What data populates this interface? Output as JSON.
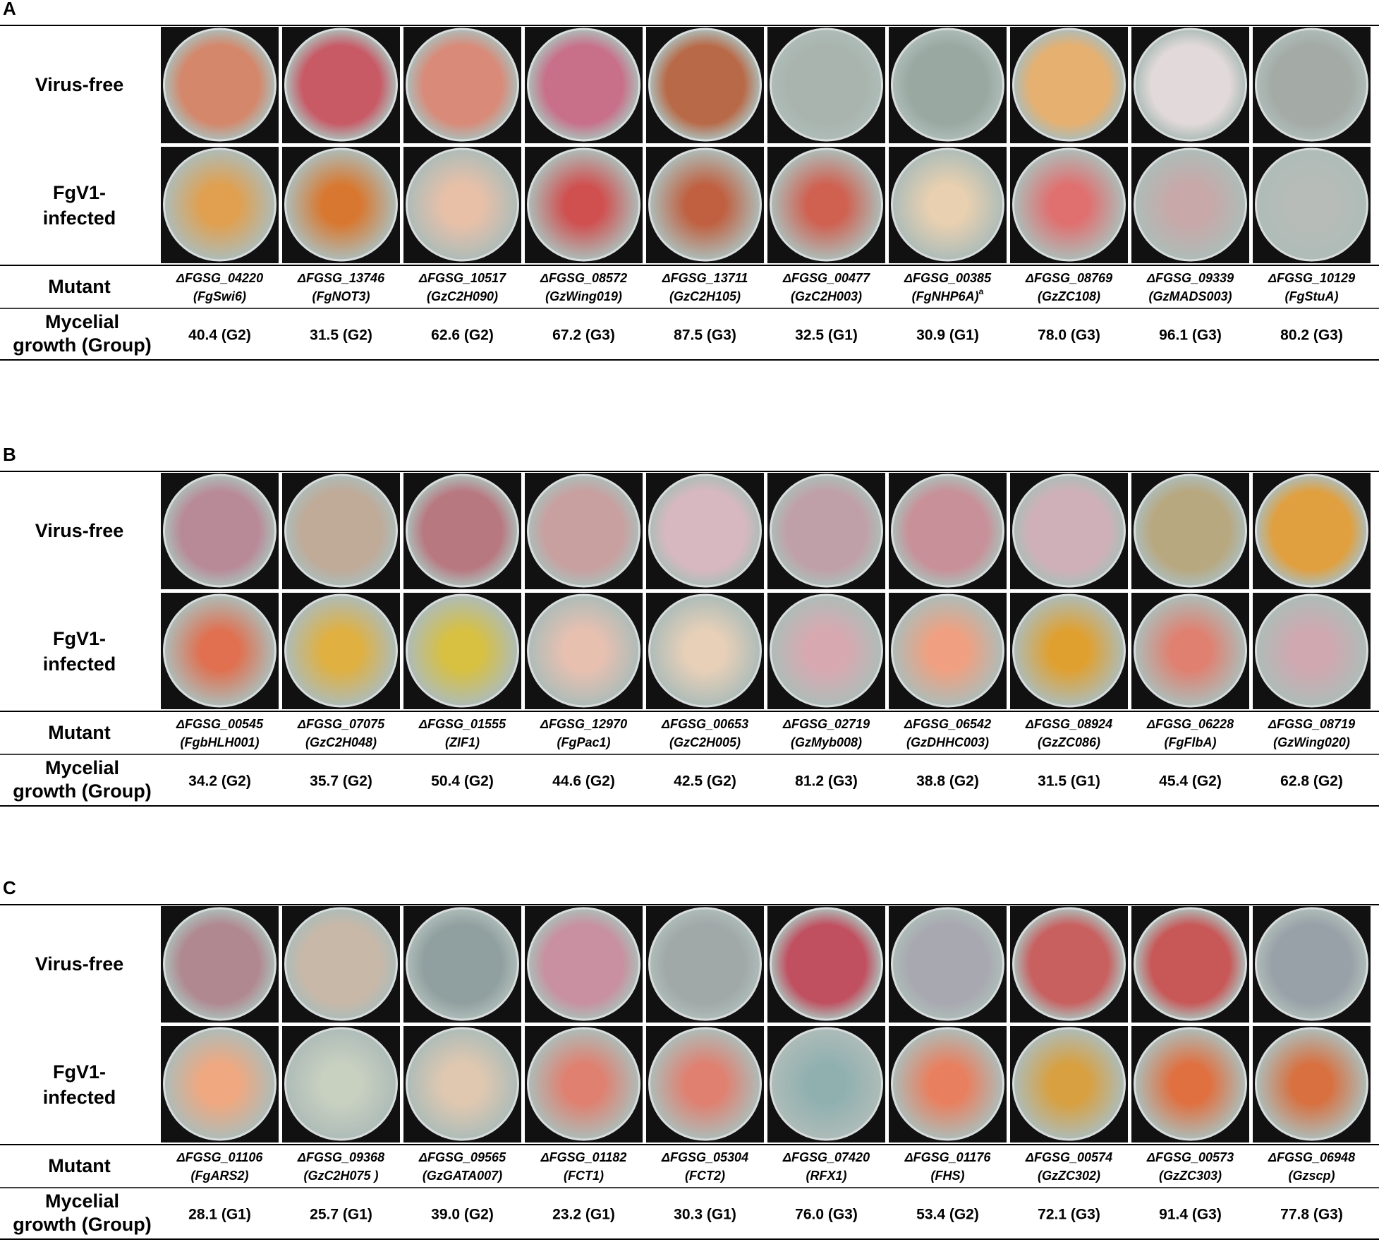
{
  "panels": [
    {
      "label": "A",
      "rows": {
        "virus_free": "Virus-free",
        "infected": [
          "FgV1-",
          "infected"
        ],
        "mutant": "Mutant",
        "growth": [
          "Mycelial",
          "growth (Group)"
        ]
      },
      "virus_free_colors": [
        "#d4876a",
        "#c85a66",
        "#d98a78",
        "#c8708a",
        "#b86a48",
        "#a9b4ae",
        "#9aa8a2",
        "#e6b070",
        "#e2dada",
        "#a4aaa6"
      ],
      "infected_colors": [
        "#e0a050",
        "#d87830",
        "#e8c0a8",
        "#d05050",
        "#c06040",
        "#d06050",
        "#e8d0b0",
        "#e07070",
        "#c8a8a8",
        "#b8bcb8"
      ],
      "mutants": [
        {
          "id": "ΔFGSG_04220",
          "gene": "(FgSwi6)"
        },
        {
          "id": "ΔFGSG_13746",
          "gene": "(FgNOT3)"
        },
        {
          "id": "ΔFGSG_10517",
          "gene": "(GzC2H090)"
        },
        {
          "id": "ΔFGSG_08572",
          "gene": "(GzWing019)"
        },
        {
          "id": "ΔFGSG_13711",
          "gene": "(GzC2H105)"
        },
        {
          "id": "ΔFGSG_00477",
          "gene": "(GzC2H003)"
        },
        {
          "id": "ΔFGSG_00385",
          "gene": "(FgNHP6A)",
          "note": "a"
        },
        {
          "id": "ΔFGSG_08769",
          "gene": "(GzZC108)"
        },
        {
          "id": "ΔFGSG_09339",
          "gene": "(GzMADS003)"
        },
        {
          "id": "ΔFGSG_10129",
          "gene": "(FgStuA)"
        }
      ],
      "growth": [
        "40.4 (G2)",
        "31.5 (G2)",
        "62.6 (G2)",
        "67.2 (G3)",
        "87.5 (G3)",
        "32.5 (G1)",
        "30.9 (G1)",
        "78.0 (G3)",
        "96.1 (G3)",
        "80.2 (G3)"
      ]
    },
    {
      "label": "B",
      "rows": {
        "virus_free": "Virus-free",
        "infected": [
          "FgV1-",
          "infected"
        ],
        "mutant": "Mutant",
        "growth": [
          "Mycelial",
          "growth (Group)"
        ]
      },
      "virus_free_colors": [
        "#b88a98",
        "#c0aa98",
        "#b87880",
        "#c8a0a0",
        "#d8b8c0",
        "#c0a0a8",
        "#c89098",
        "#d0b0b8",
        "#b8a880",
        "#e0a040"
      ],
      "infected_colors": [
        "#e07050",
        "#e0b040",
        "#d8c040",
        "#e8c0b0",
        "#e8d0b8",
        "#d8a8b0",
        "#f0a080",
        "#e0a030",
        "#e08070",
        "#d0a8b0"
      ],
      "mutants": [
        {
          "id": "ΔFGSG_00545",
          "gene": "(FgbHLH001)"
        },
        {
          "id": "ΔFGSG_07075",
          "gene": "(GzC2H048)"
        },
        {
          "id": "ΔFGSG_01555",
          "gene": "(ZIF1)"
        },
        {
          "id": "ΔFGSG_12970",
          "gene": "(FgPac1)"
        },
        {
          "id": "ΔFGSG_00653",
          "gene": "(GzC2H005)"
        },
        {
          "id": "ΔFGSG_02719",
          "gene": "(GzMyb008)"
        },
        {
          "id": "ΔFGSG_06542",
          "gene": "(GzDHHC003)"
        },
        {
          "id": "ΔFGSG_08924",
          "gene": "(GzZC086)"
        },
        {
          "id": "ΔFGSG_06228",
          "gene": "(FgFlbA)"
        },
        {
          "id": "ΔFGSG_08719",
          "gene": "(GzWing020)"
        }
      ],
      "growth": [
        "34.2 (G2)",
        "35.7 (G2)",
        "50.4 (G2)",
        "44.6 (G2)",
        "42.5 (G2)",
        "81.2 (G3)",
        "38.8 (G2)",
        "31.5 (G1)",
        "45.4 (G2)",
        "62.8 (G2)"
      ]
    },
    {
      "label": "C",
      "rows": {
        "virus_free": "Virus-free",
        "infected": [
          "FgV1-",
          "infected"
        ],
        "mutant": "Mutant",
        "growth": [
          "Mycelial",
          "growth (Group)"
        ]
      },
      "virus_free_colors": [
        "#b08890",
        "#c8b8a8",
        "#90a0a0",
        "#c890a0",
        "#a0a8a8",
        "#c05060",
        "#a8a8b0",
        "#c86060",
        "#c85858",
        "#98a0a8"
      ],
      "infected_colors": [
        "#f0a880",
        "#c8d0c0",
        "#e0c8b0",
        "#e08070",
        "#e08070",
        "#90b0b0",
        "#e88060",
        "#d8a040",
        "#e07040",
        "#d87040"
      ],
      "mutants": [
        {
          "id": "ΔFGSG_01106",
          "gene": "(FgARS2)"
        },
        {
          "id": "ΔFGSG_09368",
          "gene": "(GzC2H075 )"
        },
        {
          "id": "ΔFGSG_09565",
          "gene": "(GzGATA007)"
        },
        {
          "id": "ΔFGSG_01182",
          "gene": "(FCT1)"
        },
        {
          "id": "ΔFGSG_05304",
          "gene": "(FCT2)"
        },
        {
          "id": "ΔFGSG_07420",
          "gene": "(RFX1)"
        },
        {
          "id": "ΔFGSG_01176",
          "gene": "(FHS)"
        },
        {
          "id": "ΔFGSG_00574",
          "gene": "(GzZC302)"
        },
        {
          "id": "ΔFGSG_00573",
          "gene": "(GzZC303)"
        },
        {
          "id": "ΔFGSG_06948",
          "gene": "(Gzscp)"
        }
      ],
      "growth": [
        "28.1 (G1)",
        "25.7 (G1)",
        "39.0 (G2)",
        "23.2 (G1)",
        "30.3 (G1)",
        "76.0 (G3)",
        "53.4 (G2)",
        "72.1 (G3)",
        "91.4 (G3)",
        "77.8 (G3)"
      ]
    }
  ]
}
